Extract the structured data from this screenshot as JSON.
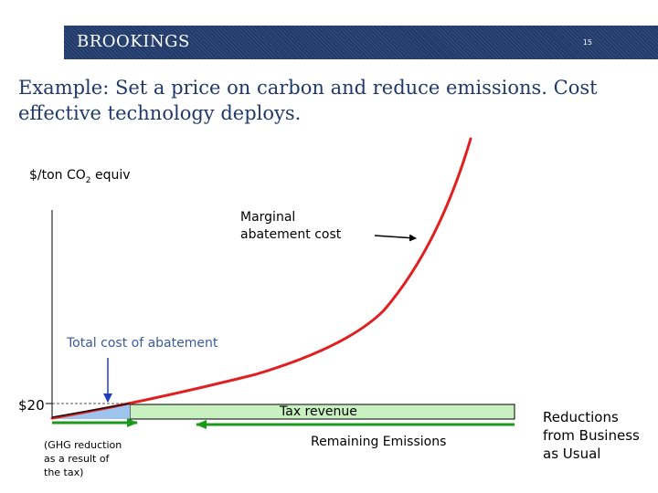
{
  "header": {
    "brand": "BROOKINGS",
    "slide_number": "15",
    "colors": {
      "background": "#1f3a6a",
      "text": "#ffffff"
    }
  },
  "title": "Example:  Set a price on carbon and reduce emissions.  Cost effective technology deploys.",
  "diagram": {
    "y_axis_label": {
      "prefix": "$/ton CO",
      "subscript": "2",
      "suffix": " equiv"
    },
    "curve_label_line1": "Marginal",
    "curve_label_line2": "abatement cost",
    "total_cost_label": "Total cost of abatement",
    "price_label": "$20",
    "tax_revenue_label": "Tax revenue",
    "remaining_emissions_label": "Remaining Emissions",
    "ghg_note_line1": "(GHG reduction",
    "ghg_note_line2": "as a result of",
    "ghg_note_line3": "the tax)",
    "bau_line1": "Reductions",
    "bau_line2": "from Business",
    "bau_line3": "as Usual",
    "colors": {
      "curve": "#e02020",
      "tax_revenue_fill": "#c8f0c0",
      "total_cost_fill": "#9ec3ec",
      "arrows_green": "#1a9a1a",
      "arrow_blue": "#1f3fbf",
      "label_blue": "#3b5a9a"
    }
  }
}
